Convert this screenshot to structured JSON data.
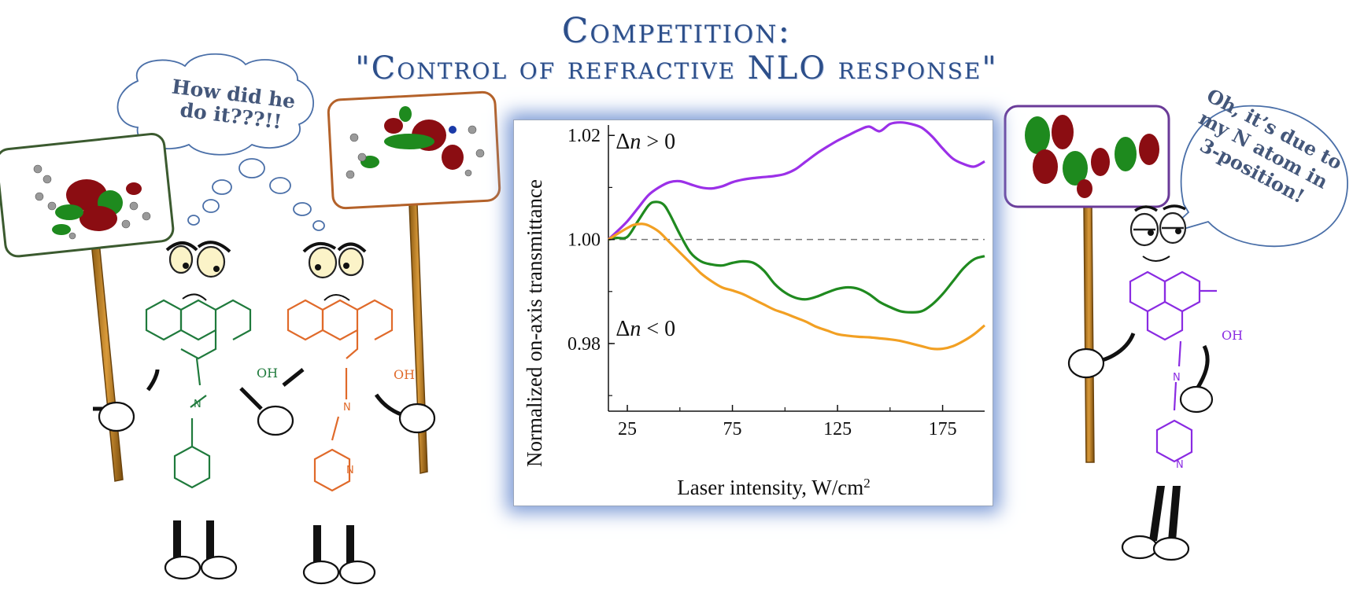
{
  "title": {
    "line1": "Competition:",
    "line2": "\"Control of refractive NLO response\""
  },
  "bubbles": {
    "left_text": "How did he do it???!!",
    "right_text": "Oh, it’s due to my N atom in 3-position!"
  },
  "molecule_labels": {
    "green_oh": "OH",
    "orange_oh": "OH",
    "purple_oh": "OH",
    "azo_n": "N",
    "pyridine_n": "N"
  },
  "colors": {
    "title": "#2d4f8a",
    "green": "#1f7a3c",
    "orange": "#e06a2a",
    "purple": "#8a2be2",
    "chart_glow": "#7d9bd6",
    "orbital_red": "#8b0d12",
    "orbital_green": "#1e8a1e"
  },
  "chart_data": {
    "type": "line",
    "xlabel": "Laser intensity, W/cm",
    "xlabel_sup": "2",
    "ylabel": "Normalized on-axis transmittance",
    "xlim": [
      16,
      195
    ],
    "ylim": [
      0.967,
      1.022
    ],
    "xticks": [
      25,
      75,
      125,
      175
    ],
    "yticks": [
      0.98,
      1.0,
      1.02
    ],
    "ytick_labels": [
      "0.98",
      "1.00",
      "1.02"
    ],
    "reference_line": 1.0,
    "annotations": [
      {
        "delta": "Δ",
        "var": "n",
        "rest": " > 0",
        "x": 19.5,
        "y": 1.0175
      },
      {
        "delta": "Δ",
        "var": "n",
        "rest": " < 0",
        "x": 19.5,
        "y": 0.9815
      }
    ],
    "series": [
      {
        "color": "#9b30e8",
        "x": [
          16,
          20,
          25,
          30,
          35,
          40,
          45,
          50,
          55,
          60,
          65,
          70,
          75,
          80,
          85,
          90,
          95,
          100,
          105,
          110,
          115,
          120,
          125,
          130,
          135,
          140,
          145,
          150,
          155,
          160,
          165,
          170,
          175,
          180,
          185,
          190,
          195
        ],
        "y": [
          1.0,
          1.0015,
          1.0035,
          1.006,
          1.0085,
          1.01,
          1.011,
          1.0112,
          1.0106,
          1.01,
          1.0098,
          1.0102,
          1.011,
          1.0115,
          1.0118,
          1.012,
          1.0122,
          1.0126,
          1.0135,
          1.015,
          1.0165,
          1.0178,
          1.019,
          1.02,
          1.021,
          1.0217,
          1.0208,
          1.0222,
          1.0225,
          1.0222,
          1.0215,
          1.0198,
          1.0175,
          1.0155,
          1.0145,
          1.014,
          1.015
        ]
      },
      {
        "color": "#1f8a1f",
        "x": [
          16,
          20,
          25,
          30,
          35,
          38,
          42,
          45,
          50,
          55,
          60,
          65,
          70,
          75,
          80,
          85,
          90,
          95,
          100,
          105,
          110,
          115,
          120,
          125,
          130,
          135,
          140,
          145,
          150,
          155,
          160,
          165,
          170,
          175,
          180,
          185,
          190,
          195
        ],
        "y": [
          1.0,
          1.0003,
          1.0005,
          1.0035,
          1.0065,
          1.0072,
          1.0068,
          1.005,
          1.001,
          0.9975,
          0.9958,
          0.9952,
          0.995,
          0.9955,
          0.9958,
          0.9955,
          0.994,
          0.9915,
          0.9898,
          0.9888,
          0.9885,
          0.989,
          0.9898,
          0.9905,
          0.9908,
          0.9905,
          0.9895,
          0.988,
          0.987,
          0.9862,
          0.986,
          0.9862,
          0.9875,
          0.9895,
          0.992,
          0.9945,
          0.9962,
          0.9968
        ]
      },
      {
        "color": "#f2a023",
        "x": [
          16,
          20,
          25,
          28,
          32,
          35,
          40,
          45,
          50,
          55,
          60,
          65,
          70,
          75,
          80,
          85,
          90,
          95,
          100,
          105,
          110,
          115,
          120,
          125,
          130,
          135,
          140,
          145,
          150,
          155,
          160,
          165,
          170,
          175,
          180,
          185,
          190,
          195
        ],
        "y": [
          1.0,
          1.001,
          1.0022,
          1.0028,
          1.003,
          1.0027,
          1.0015,
          0.9995,
          0.9975,
          0.9955,
          0.9935,
          0.992,
          0.9908,
          0.9902,
          0.9895,
          0.9885,
          0.9875,
          0.9865,
          0.9858,
          0.985,
          0.9842,
          0.9832,
          0.9825,
          0.9818,
          0.9815,
          0.9813,
          0.9812,
          0.981,
          0.9808,
          0.9805,
          0.98,
          0.9795,
          0.979,
          0.979,
          0.9795,
          0.9805,
          0.9818,
          0.9835
        ]
      }
    ]
  }
}
